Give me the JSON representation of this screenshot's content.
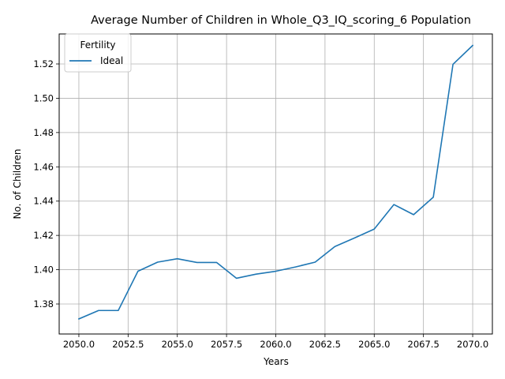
{
  "chart_data": {
    "type": "line",
    "title": "Average Number of Children in Whole_Q3_IQ_scoring_6 Population",
    "xlabel": "Years",
    "ylabel": "No. of Children",
    "xlim": [
      2049,
      2071
    ],
    "ylim": [
      1.3625,
      1.5375
    ],
    "xticks": [
      2050.0,
      2052.5,
      2055.0,
      2057.5,
      2060.0,
      2062.5,
      2065.0,
      2067.5,
      2070.0
    ],
    "xtick_labels": [
      "2050.0",
      "2052.5",
      "2055.0",
      "2057.5",
      "2060.0",
      "2062.5",
      "2065.0",
      "2067.5",
      "2070.0"
    ],
    "yticks": [
      1.38,
      1.4,
      1.42,
      1.44,
      1.46,
      1.48,
      1.5,
      1.52
    ],
    "ytick_labels": [
      "1.38",
      "1.40",
      "1.42",
      "1.44",
      "1.46",
      "1.48",
      "1.50",
      "1.52"
    ],
    "grid": true,
    "legend": {
      "title": "Fertility",
      "placement": "top-left"
    },
    "x": [
      2050,
      2051,
      2052,
      2053,
      2054,
      2055,
      2056,
      2057,
      2058,
      2059,
      2060,
      2061,
      2062,
      2063,
      2064,
      2065,
      2066,
      2067,
      2068,
      2069,
      2070
    ],
    "series": [
      {
        "name": "Ideal",
        "color": "#1f77b4",
        "values": [
          1.3713,
          1.3762,
          1.3762,
          1.3991,
          1.4044,
          1.4064,
          1.4042,
          1.4042,
          1.395,
          1.3974,
          1.3991,
          1.4016,
          1.4044,
          1.4135,
          1.4185,
          1.4237,
          1.438,
          1.4321,
          1.4423,
          1.5198,
          1.5308
        ]
      }
    ]
  }
}
